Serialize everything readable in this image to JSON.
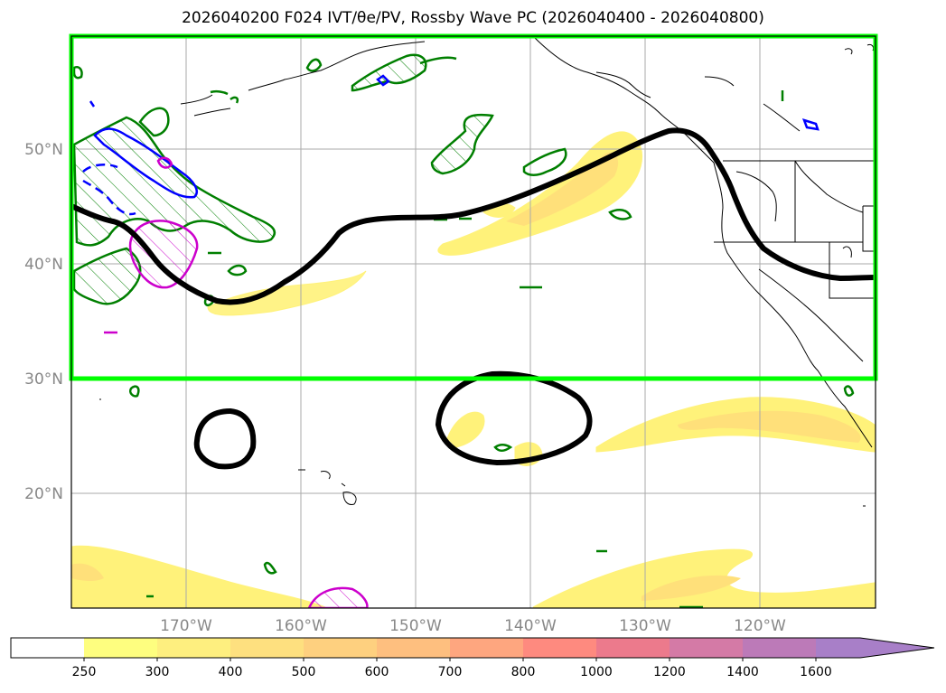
{
  "title": "2026040200 F024 IVT/θe/PV, Rossby Wave PC (2026040400 - 2026040800)",
  "map": {
    "latitude_labels": [
      "50°N",
      "40°N",
      "30°N",
      "20°N"
    ],
    "longitude_labels": [
      "170°W",
      "160°W",
      "150°W",
      "140°W",
      "130°W",
      "120°W"
    ],
    "highlight_box": {
      "lat_range": [
        "30°N",
        "60°N"
      ],
      "color": "#00ff00"
    },
    "colors": {
      "ivt_fill": "#fff27a",
      "ivt_fill_strong": "#ffe07a",
      "theta_e_contour": "#007f00",
      "pv_contour": "#0000ff",
      "pv_negative": "#cc00cc",
      "rossby_wave_pc": "#000000",
      "coastline": "#000000"
    }
  },
  "colorbar": {
    "labels": [
      "250",
      "300",
      "400",
      "500",
      "600",
      "700",
      "800",
      "1000",
      "1200",
      "1400",
      "1600"
    ],
    "colors": [
      "#ffffff",
      "#fefe7f",
      "#feef7f",
      "#fee07f",
      "#fed07f",
      "#febf7f",
      "#fea67f",
      "#fe8a7f",
      "#ec7a8c",
      "#d47aa6",
      "#bc7ab8",
      "#a87fc8"
    ],
    "extend": "max"
  }
}
